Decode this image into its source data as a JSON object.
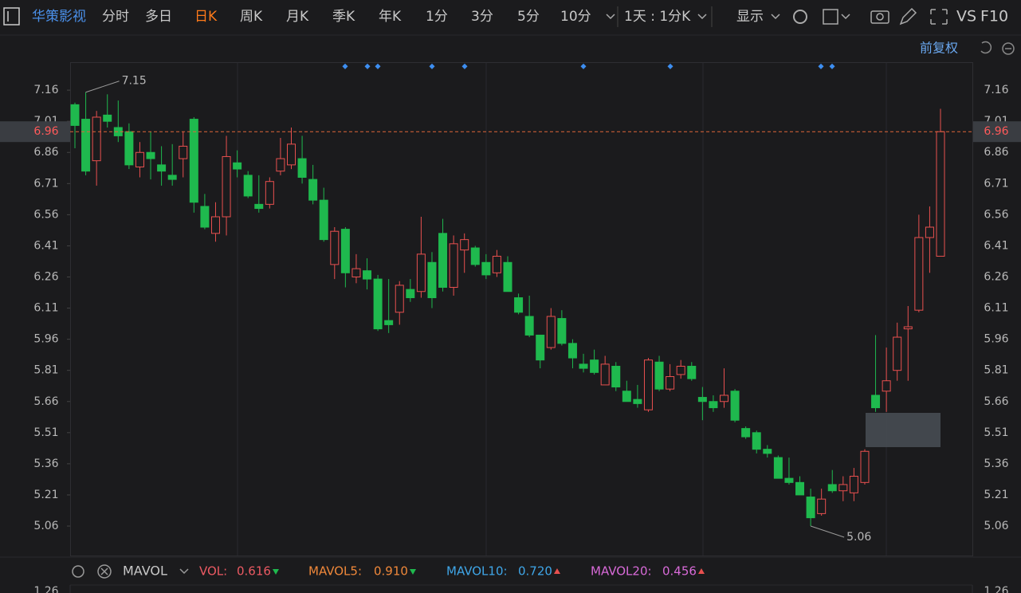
{
  "toolbar": {
    "stock": "华策影视",
    "tabs": [
      "分时",
      "多日",
      "日K",
      "周K",
      "月K",
      "季K",
      "年K",
      "1分",
      "3分",
      "5分",
      "10分"
    ],
    "active_tab": "日K",
    "period": "1天 : 1分K",
    "display": "显示",
    "vs": "VS",
    "f10": "F10",
    "adjust": "前复权"
  },
  "chart_data": {
    "type": "candlestick",
    "open": [
      7.09,
      7.02,
      6.82,
      7.04,
      6.98,
      6.96,
      6.79,
      6.86,
      6.8,
      6.75,
      6.83,
      7.02,
      6.6,
      6.47,
      6.55,
      6.81,
      6.75,
      6.61,
      6.61,
      6.77,
      6.8,
      6.83,
      6.73,
      6.63,
      6.32,
      6.49,
      6.26,
      6.29,
      6.25,
      6.05,
      6.09,
      6.2,
      6.19,
      6.33,
      6.47,
      6.21,
      6.39,
      6.4,
      6.33,
      6.28,
      6.33,
      6.16,
      6.07,
      5.98,
      5.92,
      6.06,
      5.94,
      5.84,
      5.86,
      5.74,
      5.83,
      5.71,
      5.67,
      5.62,
      5.85,
      5.72,
      5.79,
      5.83,
      5.68,
      5.66,
      5.66,
      5.71,
      5.53,
      5.51,
      5.43,
      5.39,
      5.29,
      5.27,
      5.2,
      5.12,
      5.26,
      5.23,
      5.22,
      5.27,
      5.69,
      5.71,
      5.81,
      6.01,
      6.1,
      6.45,
      6.36
    ],
    "high": [
      7.1,
      7.15,
      7.06,
      7.14,
      7.11,
      7.0,
      6.91,
      6.96,
      6.89,
      6.9,
      6.96,
      7.03,
      6.66,
      6.62,
      6.94,
      6.87,
      6.77,
      6.75,
      6.74,
      6.93,
      6.98,
      6.94,
      6.8,
      6.69,
      6.5,
      6.5,
      6.37,
      6.35,
      6.27,
      6.25,
      6.24,
      6.25,
      6.55,
      6.38,
      6.54,
      6.46,
      6.47,
      6.41,
      6.37,
      6.39,
      6.36,
      6.18,
      6.17,
      5.98,
      6.11,
      6.1,
      5.96,
      5.89,
      5.91,
      5.88,
      5.85,
      5.76,
      5.74,
      5.87,
      5.88,
      5.84,
      5.86,
      5.85,
      5.73,
      5.69,
      5.82,
      5.72,
      5.54,
      5.52,
      5.45,
      5.4,
      5.39,
      5.3,
      5.24,
      5.24,
      5.33,
      5.3,
      5.34,
      5.43,
      5.98,
      5.92,
      6.04,
      6.12,
      6.56,
      6.6,
      7.07
    ],
    "low": [
      6.88,
      6.75,
      6.7,
      6.98,
      6.91,
      6.78,
      6.74,
      6.73,
      6.7,
      6.7,
      6.74,
      6.57,
      6.49,
      6.43,
      6.46,
      6.74,
      6.64,
      6.57,
      6.59,
      6.75,
      6.78,
      6.71,
      6.61,
      6.43,
      6.25,
      6.21,
      6.23,
      6.2,
      6.0,
      5.99,
      6.03,
      6.14,
      6.16,
      6.11,
      6.19,
      6.17,
      6.28,
      6.31,
      6.25,
      6.26,
      6.19,
      6.08,
      5.97,
      5.82,
      5.91,
      5.93,
      5.82,
      5.8,
      5.79,
      5.74,
      5.71,
      5.66,
      5.63,
      5.61,
      5.71,
      5.71,
      5.77,
      5.76,
      5.57,
      5.61,
      5.63,
      5.56,
      5.48,
      5.41,
      5.39,
      5.29,
      5.26,
      5.21,
      5.06,
      5.11,
      5.22,
      5.18,
      5.18,
      5.26,
      5.61,
      5.61,
      5.76,
      5.76,
      6.09,
      6.28,
      6.36
    ],
    "close": [
      6.99,
      6.77,
      7.03,
      7.01,
      6.94,
      6.8,
      6.86,
      6.83,
      6.77,
      6.73,
      6.89,
      6.62,
      6.5,
      6.55,
      6.84,
      6.78,
      6.65,
      6.59,
      6.72,
      6.83,
      6.9,
      6.74,
      6.63,
      6.44,
      6.48,
      6.28,
      6.3,
      6.25,
      6.01,
      6.03,
      6.22,
      6.16,
      6.37,
      6.16,
      6.21,
      6.42,
      6.44,
      6.32,
      6.27,
      6.36,
      6.19,
      6.09,
      5.98,
      5.86,
      6.07,
      5.94,
      5.87,
      5.82,
      5.8,
      5.84,
      5.73,
      5.66,
      5.65,
      5.86,
      5.72,
      5.78,
      5.83,
      5.77,
      5.66,
      5.63,
      5.69,
      5.57,
      5.49,
      5.43,
      5.41,
      5.29,
      5.27,
      5.21,
      5.1,
      5.19,
      5.23,
      5.26,
      5.3,
      5.42,
      5.63,
      5.76,
      5.97,
      6.02,
      6.45,
      6.5,
      6.96
    ],
    "up_color": "#e8504f",
    "down_color": "#1fb94e",
    "ylim": [
      4.918,
      7.291
    ],
    "yticks": [
      7.16,
      7.01,
      6.86,
      6.71,
      6.56,
      6.41,
      6.26,
      6.11,
      5.96,
      5.81,
      5.66,
      5.51,
      5.36,
      5.21,
      5.06
    ],
    "last_price": 6.96,
    "annotations": [
      7.15,
      5.06
    ]
  },
  "indicator": {
    "name": "MAVOL",
    "top_tick": 1.26,
    "items": [
      {
        "label": "VOL:",
        "value": 0.616,
        "color": "#ec5a63",
        "trend": "down"
      },
      {
        "label": "MAVOL5:",
        "value": {
          "value": 0.91,
          "label": "0.910"
        },
        "color": "#f0883a",
        "trend": "down"
      },
      {
        "label": "MAVOL10:",
        "value": {
          "value": 0.72,
          "label": "0.720"
        },
        "color": "#3fa6e8",
        "trend": "up"
      },
      {
        "label": "MAVOL20:",
        "value": 0.456,
        "color": "#d86ad8",
        "trend": "up"
      }
    ]
  }
}
